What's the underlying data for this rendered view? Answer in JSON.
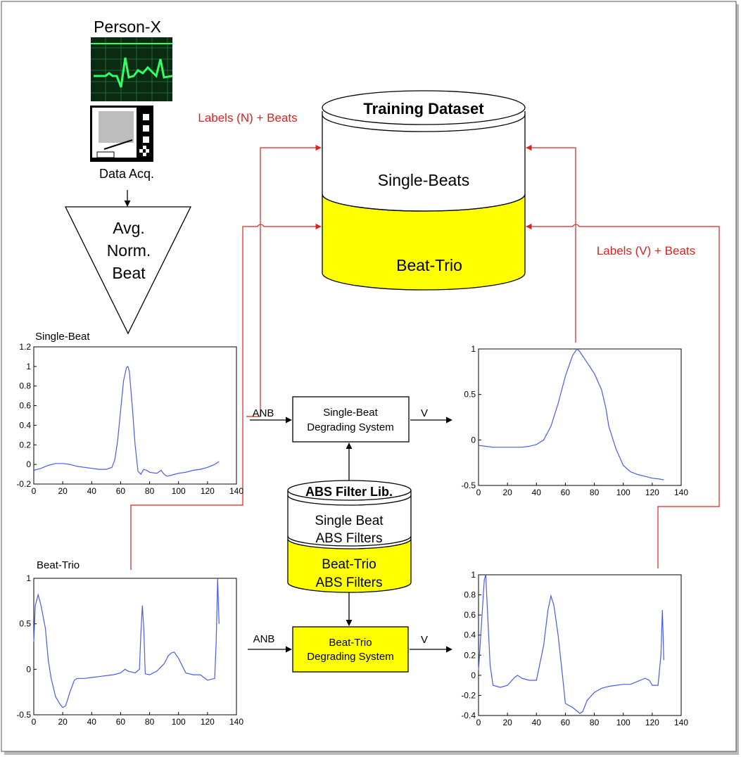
{
  "acquisition": {
    "person_label": "Person-X",
    "device_label": "Data Acq.",
    "triangle_lines": [
      "Avg.",
      "Norm.",
      "Beat"
    ]
  },
  "dataset": {
    "title": "Training Dataset",
    "single_label": "Single-Beats",
    "trio_label": "Beat-Trio"
  },
  "filter_lib": {
    "title": "ABS Filter Lib.",
    "single_lines": [
      "Single Beat",
      "ABS Filters"
    ],
    "trio_lines": [
      "Beat-Trio",
      "ABS Filters"
    ]
  },
  "systems": {
    "single_lines": [
      "Single-Beat",
      "Degrading System"
    ],
    "trio_lines": [
      "Beat-Trio",
      "Degrading System"
    ]
  },
  "arrows": {
    "anb_single": "ANB",
    "anb_trio": "ANB",
    "v_single": "V",
    "v_trio": "V"
  },
  "feedback_labels": {
    "normal": "Labels (N) + Beats",
    "abnormal": "Labels (V) + Beats"
  },
  "colors": {
    "feedback": "#e02020",
    "yellow": "#ffff00",
    "plot_line": "#4a5af0",
    "monitor_trace": "#33ff66"
  },
  "chart_data": [
    {
      "id": "single_beat_in",
      "type": "line",
      "title": "Single-Beat",
      "xlim": [
        0,
        140
      ],
      "ylim": [
        -0.2,
        1.2
      ],
      "xticks": [
        "0",
        "20",
        "40",
        "60",
        "80",
        "100",
        "120",
        "140"
      ],
      "yticks": [
        "-0.2",
        "0",
        "0.2",
        "0.4",
        "0.6",
        "0.8",
        "1",
        "1.2"
      ],
      "x": [
        0,
        5,
        10,
        15,
        20,
        25,
        30,
        35,
        40,
        45,
        50,
        54,
        56,
        58,
        60,
        62,
        64,
        65,
        66,
        68,
        70,
        72,
        74,
        76,
        78,
        80,
        85,
        88,
        90,
        92,
        95,
        100,
        105,
        110,
        115,
        120,
        125,
        128
      ],
      "y": [
        -0.06,
        -0.04,
        -0.01,
        0.01,
        0.01,
        0.0,
        -0.02,
        -0.03,
        -0.04,
        -0.05,
        -0.05,
        -0.03,
        0.05,
        0.25,
        0.55,
        0.85,
        0.99,
        1.0,
        0.95,
        0.6,
        0.2,
        -0.07,
        -0.1,
        -0.05,
        -0.06,
        -0.08,
        -0.09,
        -0.06,
        -0.1,
        -0.12,
        -0.11,
        -0.09,
        -0.08,
        -0.06,
        -0.05,
        -0.03,
        0.0,
        0.03
      ]
    },
    {
      "id": "single_beat_out",
      "type": "line",
      "title": "",
      "xlim": [
        0,
        140
      ],
      "ylim": [
        -0.5,
        1
      ],
      "xticks": [
        "0",
        "20",
        "40",
        "60",
        "80",
        "100",
        "120",
        "140"
      ],
      "yticks": [
        "-0.5",
        "0",
        "0.5",
        "1"
      ],
      "x": [
        0,
        5,
        10,
        20,
        30,
        35,
        40,
        45,
        50,
        55,
        60,
        65,
        68,
        70,
        75,
        80,
        85,
        88,
        90,
        95,
        100,
        105,
        110,
        115,
        120,
        125,
        128
      ],
      "y": [
        -0.06,
        -0.07,
        -0.08,
        -0.08,
        -0.08,
        -0.07,
        -0.05,
        0.0,
        0.15,
        0.4,
        0.7,
        0.93,
        1.0,
        0.97,
        0.85,
        0.73,
        0.55,
        0.35,
        0.15,
        -0.1,
        -0.28,
        -0.35,
        -0.38,
        -0.4,
        -0.42,
        -0.43,
        -0.44
      ]
    },
    {
      "id": "beat_trio_in",
      "type": "line",
      "title": "Beat-Trio",
      "xlim": [
        0,
        140
      ],
      "ylim": [
        -0.5,
        1
      ],
      "xticks": [
        "0",
        "20",
        "40",
        "60",
        "80",
        "100",
        "120",
        "140"
      ],
      "yticks": [
        "-0.5",
        "0",
        "0.5",
        "1"
      ],
      "x": [
        0,
        1,
        3,
        5,
        8,
        10,
        12,
        15,
        18,
        20,
        22,
        25,
        28,
        30,
        35,
        40,
        45,
        50,
        55,
        60,
        63,
        65,
        70,
        73,
        74,
        75,
        76,
        77,
        80,
        85,
        90,
        93,
        95,
        97,
        100,
        105,
        110,
        115,
        120,
        125,
        126,
        127,
        128
      ],
      "y": [
        0.3,
        0.7,
        0.82,
        0.7,
        0.45,
        0.1,
        -0.1,
        -0.3,
        -0.38,
        -0.42,
        -0.4,
        -0.25,
        -0.12,
        -0.1,
        -0.1,
        -0.09,
        -0.08,
        -0.07,
        -0.06,
        -0.04,
        0.0,
        -0.02,
        -0.04,
        0.0,
        0.4,
        0.7,
        0.45,
        -0.05,
        -0.06,
        -0.02,
        0.06,
        0.15,
        0.18,
        0.19,
        0.12,
        -0.04,
        -0.06,
        -0.06,
        -0.12,
        -0.1,
        0.3,
        1.0,
        0.5
      ]
    },
    {
      "id": "beat_trio_out",
      "type": "line",
      "title": "",
      "xlim": [
        0,
        140
      ],
      "ylim": [
        -0.4,
        1
      ],
      "xticks": [
        "0",
        "20",
        "40",
        "60",
        "80",
        "100",
        "120",
        "140"
      ],
      "yticks": [
        "-0.4",
        "-0.2",
        "0",
        "0.2",
        "0.4",
        "0.6",
        "0.8",
        "1"
      ],
      "x": [
        0,
        2,
        4,
        5,
        6,
        8,
        10,
        15,
        20,
        25,
        27,
        30,
        35,
        40,
        45,
        48,
        50,
        52,
        55,
        58,
        60,
        65,
        70,
        72,
        75,
        80,
        85,
        90,
        95,
        100,
        105,
        110,
        115,
        118,
        120,
        124,
        126,
        127,
        128
      ],
      "y": [
        0.05,
        0.5,
        0.95,
        1.0,
        0.7,
        0.1,
        -0.1,
        -0.12,
        -0.1,
        -0.02,
        0.0,
        -0.03,
        -0.05,
        -0.05,
        0.3,
        0.65,
        0.79,
        0.7,
        0.4,
        0.0,
        -0.28,
        -0.32,
        -0.38,
        -0.36,
        -0.25,
        -0.17,
        -0.13,
        -0.11,
        -0.1,
        -0.09,
        -0.09,
        -0.06,
        -0.03,
        -0.05,
        -0.1,
        -0.1,
        0.2,
        0.65,
        0.15
      ]
    }
  ]
}
